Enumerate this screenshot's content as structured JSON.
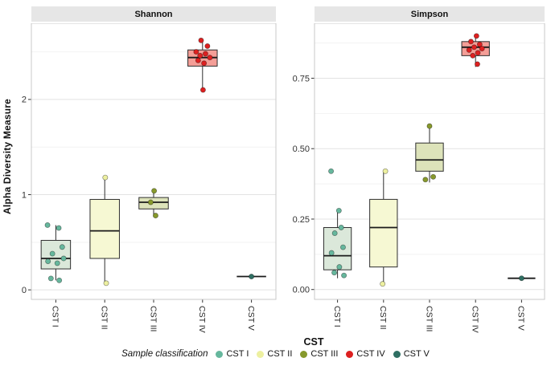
{
  "figure": {
    "y_axis_title": "Alpha Diversity Measure",
    "x_axis_title": "CST",
    "categories": [
      "CST I",
      "CST II",
      "CST III",
      "CST IV",
      "CST V"
    ]
  },
  "legend": {
    "title": "Sample classification",
    "items": [
      {
        "label": "CST I",
        "color": "#66b79d"
      },
      {
        "label": "CST II",
        "color": "#edf0a0"
      },
      {
        "label": "CST III",
        "color": "#87992c"
      },
      {
        "label": "CST IV",
        "color": "#dd2020"
      },
      {
        "label": "CST V",
        "color": "#2f6f63"
      }
    ]
  },
  "style": {
    "strip_bg": "#e6e6e6",
    "grid_major": "#e3e3e3",
    "grid_minor": "#f2f2f2",
    "panel_border": "#c9c9c9",
    "box_stroke": "#2e2e2e",
    "box_fills": {
      "CST I": "#dbe8da",
      "CST II": "#f6f8d3",
      "CST III": "#dde3ba",
      "CST IV": "#f49e97",
      "CST V": "#9cc5bb"
    }
  },
  "chart_data": [
    {
      "type": "boxplot",
      "title": "Shannon",
      "xlabel": "CST",
      "ylabel": "Alpha Diversity Measure",
      "ylim": [
        -0.1,
        2.8
      ],
      "yticks": [
        {
          "v": 0,
          "label": "0"
        },
        {
          "v": 1,
          "label": "1"
        },
        {
          "v": 2,
          "label": "2"
        }
      ],
      "boxes": [
        {
          "category": "CST I",
          "lo": 0.1,
          "q1": 0.22,
          "median": 0.33,
          "q3": 0.52,
          "hi": 0.68,
          "points": [
            {
              "v": 0.68,
              "j": -0.17
            },
            {
              "v": 0.65,
              "j": 0.06
            },
            {
              "v": 0.45,
              "j": 0.13
            },
            {
              "v": 0.38,
              "j": -0.07
            },
            {
              "v": 0.33,
              "j": 0.16
            },
            {
              "v": 0.3,
              "j": -0.16
            },
            {
              "v": 0.28,
              "j": 0.03
            },
            {
              "v": 0.12,
              "j": -0.1
            },
            {
              "v": 0.1,
              "j": 0.07
            }
          ]
        },
        {
          "category": "CST II",
          "lo": 0.07,
          "q1": 0.33,
          "median": 0.62,
          "q3": 0.95,
          "hi": 1.18,
          "points": [
            {
              "v": 1.18,
              "j": 0.01
            },
            {
              "v": 0.07,
              "j": 0.03
            }
          ]
        },
        {
          "category": "CST III",
          "lo": 0.78,
          "q1": 0.85,
          "median": 0.92,
          "q3": 0.97,
          "hi": 1.04,
          "points": [
            {
              "v": 1.04,
              "j": 0.01
            },
            {
              "v": 0.92,
              "j": -0.06
            },
            {
              "v": 0.78,
              "j": 0.04
            }
          ]
        },
        {
          "category": "CST IV",
          "lo": 2.1,
          "q1": 2.35,
          "median": 2.44,
          "q3": 2.52,
          "hi": 2.62,
          "points": [
            {
              "v": 2.62,
              "j": -0.03
            },
            {
              "v": 2.56,
              "j": 0.1
            },
            {
              "v": 2.5,
              "j": -0.13
            },
            {
              "v": 2.48,
              "j": 0.06
            },
            {
              "v": 2.46,
              "j": -0.05
            },
            {
              "v": 2.44,
              "j": 0.15
            },
            {
              "v": 2.41,
              "j": -0.09
            },
            {
              "v": 2.38,
              "j": 0.03
            },
            {
              "v": 2.1,
              "j": 0.01
            }
          ]
        },
        {
          "category": "CST V",
          "lo": 0.14,
          "q1": 0.14,
          "median": 0.14,
          "q3": 0.14,
          "hi": 0.14,
          "points": [
            {
              "v": 0.14,
              "j": 0
            }
          ]
        }
      ]
    },
    {
      "type": "boxplot",
      "title": "Simpson",
      "xlabel": "CST",
      "ylabel": "Alpha Diversity Measure",
      "ylim": [
        -0.035,
        0.945
      ],
      "yticks": [
        {
          "v": 0,
          "label": "0.00"
        },
        {
          "v": 0.25,
          "label": "0.25"
        },
        {
          "v": 0.5,
          "label": "0.50"
        },
        {
          "v": 0.75,
          "label": "0.75"
        }
      ],
      "boxes": [
        {
          "category": "CST I",
          "lo": 0.04,
          "q1": 0.07,
          "median": 0.12,
          "q3": 0.22,
          "hi": 0.28,
          "points": [
            {
              "v": 0.42,
              "j": -0.14
            },
            {
              "v": 0.28,
              "j": 0.03
            },
            {
              "v": 0.22,
              "j": 0.08
            },
            {
              "v": 0.2,
              "j": -0.06
            },
            {
              "v": 0.15,
              "j": 0.12
            },
            {
              "v": 0.13,
              "j": -0.13
            },
            {
              "v": 0.08,
              "j": 0.04
            },
            {
              "v": 0.06,
              "j": -0.07
            },
            {
              "v": 0.05,
              "j": 0.14
            }
          ]
        },
        {
          "category": "CST II",
          "lo": 0.02,
          "q1": 0.08,
          "median": 0.22,
          "q3": 0.32,
          "hi": 0.42,
          "points": [
            {
              "v": 0.42,
              "j": 0.04
            },
            {
              "v": 0.02,
              "j": -0.02
            }
          ]
        },
        {
          "category": "CST III",
          "lo": 0.38,
          "q1": 0.42,
          "median": 0.46,
          "q3": 0.52,
          "hi": 0.58,
          "points": [
            {
              "v": 0.58,
              "j": 0.0
            },
            {
              "v": 0.4,
              "j": 0.08
            },
            {
              "v": 0.39,
              "j": -0.09
            }
          ]
        },
        {
          "category": "CST IV",
          "lo": 0.79,
          "q1": 0.83,
          "median": 0.86,
          "q3": 0.88,
          "hi": 0.9,
          "points": [
            {
              "v": 0.9,
              "j": 0.02
            },
            {
              "v": 0.88,
              "j": -0.1
            },
            {
              "v": 0.87,
              "j": 0.09
            },
            {
              "v": 0.86,
              "j": -0.03
            },
            {
              "v": 0.855,
              "j": 0.14
            },
            {
              "v": 0.85,
              "j": -0.14
            },
            {
              "v": 0.84,
              "j": 0.05
            },
            {
              "v": 0.83,
              "j": -0.06
            },
            {
              "v": 0.8,
              "j": 0.04
            }
          ]
        },
        {
          "category": "CST V",
          "lo": 0.04,
          "q1": 0.04,
          "median": 0.04,
          "q3": 0.04,
          "hi": 0.04,
          "points": [
            {
              "v": 0.04,
              "j": 0
            }
          ]
        }
      ]
    }
  ]
}
